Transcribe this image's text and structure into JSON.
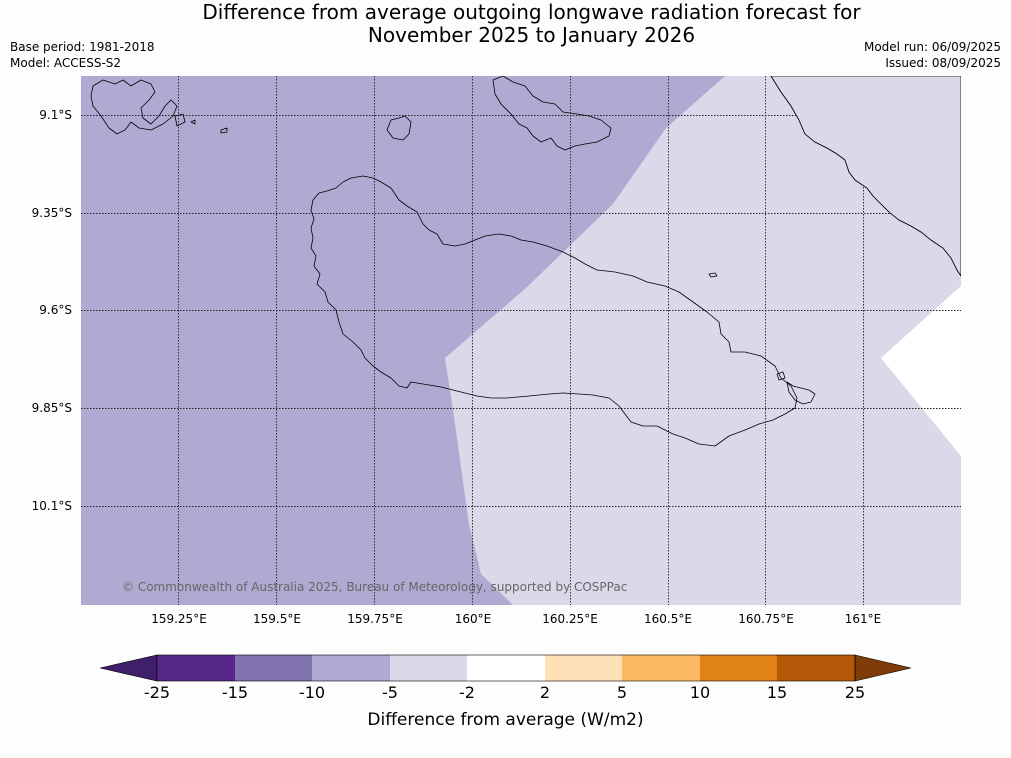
{
  "title_line1": "Difference from average outgoing longwave radiation forecast for",
  "title_line2": "November 2025 to January 2026",
  "base_period": "Base period: 1981-2018",
  "model": "Model: ACCESS-S2",
  "model_run": "Model run: 06/09/2025",
  "issued": "Issued: 08/09/2025",
  "copyright": "© Commonwealth of Australia 2025, Bureau of Meteorology, supported by COSPPac",
  "lat_labels": [
    "9.1°S",
    "9.35°S",
    "9.6°S",
    "9.85°S",
    "10.1°S"
  ],
  "lon_labels": [
    "159.25°E",
    "159.5°E",
    "159.75°E",
    "160°E",
    "160.25°E",
    "160.5°E",
    "160.75°E",
    "161°E"
  ],
  "grid": "on",
  "colorbar": {
    "label": "Difference from average (W/m2)",
    "ticks": [
      "-25",
      "-15",
      "-10",
      "-5",
      "-2",
      "2",
      "5",
      "10",
      "15",
      "25"
    ],
    "colors": [
      "#3f1f6b",
      "#57278a",
      "#8073ae",
      "#b0aad2",
      "#d9d9ea",
      "#ffffff",
      "#fee0b6",
      "#fdb863",
      "#e08214",
      "#b35806",
      "#7f3b08"
    ]
  },
  "map_fills": {
    "west_category": "-10 to -5",
    "east_category": "-5 to -2",
    "far_east_category": "-2 to 2"
  }
}
